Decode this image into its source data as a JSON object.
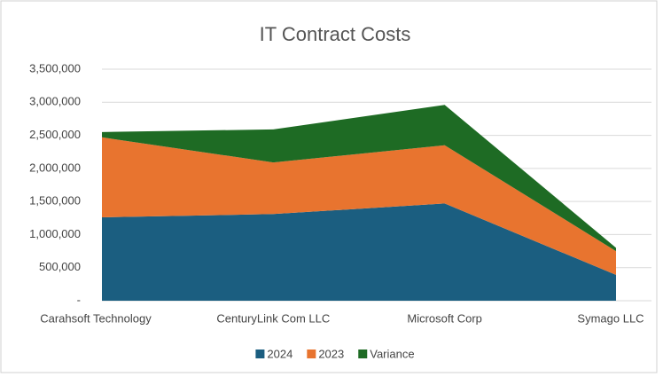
{
  "chart_data": {
    "type": "area",
    "stacked": true,
    "title": "IT Contract Costs",
    "categories": [
      "Carahsoft Technology",
      "CenturyLink Com LLC",
      "Microsoft Corp",
      "Symago LLC"
    ],
    "series": [
      {
        "name": "2024",
        "color": "#1b5e80",
        "values": [
          1260000,
          1310000,
          1470000,
          390000
        ]
      },
      {
        "name": "2023",
        "color": "#e8742f",
        "values": [
          1210000,
          780000,
          880000,
          360000
        ]
      },
      {
        "name": "Variance",
        "color": "#1e6b24",
        "values": [
          80000,
          500000,
          610000,
          50000
        ]
      }
    ],
    "ylim": [
      0,
      3500000
    ],
    "yticks": [
      {
        "value": 0,
        "label": "-"
      },
      {
        "value": 500000,
        "label": "500,000"
      },
      {
        "value": 1000000,
        "label": "1,000,000"
      },
      {
        "value": 1500000,
        "label": "1,500,000"
      },
      {
        "value": 2000000,
        "label": "2,000,000"
      },
      {
        "value": 2500000,
        "label": "2,500,000"
      },
      {
        "value": 3000000,
        "label": "3,000,000"
      },
      {
        "value": 3500000,
        "label": "3,500,000"
      }
    ],
    "grid": true,
    "legend": "bottom"
  }
}
